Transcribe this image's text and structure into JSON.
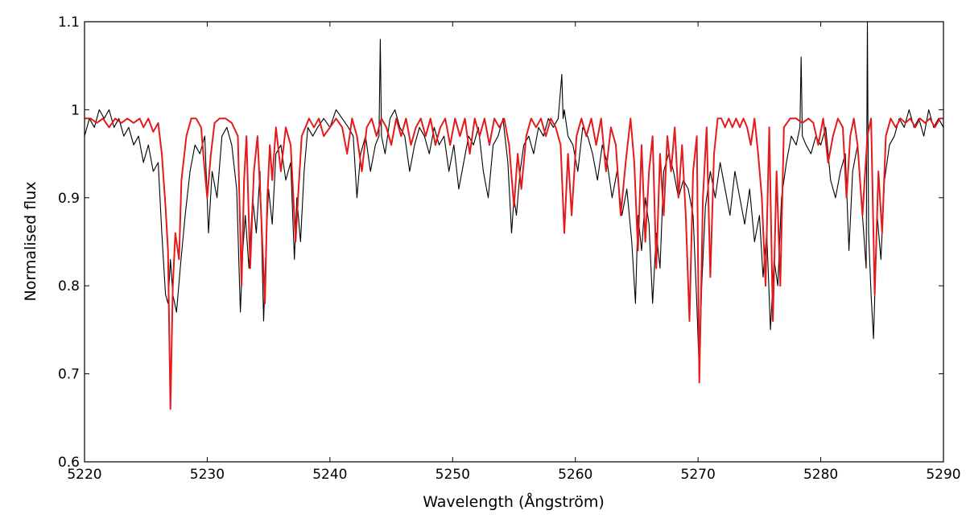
{
  "chart_data": {
    "type": "line",
    "title": "",
    "xlabel": "Wavelength (Ångström)",
    "ylabel": "Normalised flux",
    "xlim": [
      5220,
      5290
    ],
    "ylim": [
      0.6,
      1.1
    ],
    "xticks": [
      5220,
      5230,
      5240,
      5250,
      5260,
      5270,
      5280,
      5290
    ],
    "xtick_labels": [
      "5220",
      "5230",
      "5240",
      "5250",
      "5260",
      "5270",
      "5280",
      "5290"
    ],
    "yticks": [
      0.6,
      0.7,
      0.8,
      0.9,
      1.0,
      1.1
    ],
    "ytick_labels": [
      "0.6",
      "0.7",
      "0.8",
      "0.9",
      "1",
      "1.1"
    ],
    "grid": false,
    "legend": "none",
    "series": [
      {
        "color": "#000000",
        "line_width": 1.1,
        "x": [
          5220.0,
          5220.4,
          5220.8,
          5221.2,
          5221.6,
          5222.0,
          5222.4,
          5222.8,
          5223.2,
          5223.6,
          5224.0,
          5224.4,
          5224.8,
          5225.2,
          5225.6,
          5226.0,
          5226.3,
          5226.6,
          5226.8,
          5227.0,
          5227.2,
          5227.5,
          5227.8,
          5228.2,
          5228.6,
          5229.0,
          5229.4,
          5229.8,
          5230.1,
          5230.4,
          5230.8,
          5231.2,
          5231.6,
          5232.0,
          5232.4,
          5232.7,
          5232.9,
          5233.1,
          5233.4,
          5233.7,
          5234.0,
          5234.3,
          5234.6,
          5234.8,
          5235.0,
          5235.3,
          5235.6,
          5236.0,
          5236.4,
          5236.8,
          5237.1,
          5237.3,
          5237.6,
          5237.9,
          5238.2,
          5238.6,
          5239.0,
          5239.5,
          5240.0,
          5240.5,
          5241.0,
          5241.5,
          5241.9,
          5242.2,
          5242.5,
          5242.9,
          5243.3,
          5243.7,
          5244.0,
          5244.1,
          5244.2,
          5244.5,
          5244.9,
          5245.3,
          5245.7,
          5246.1,
          5246.5,
          5246.9,
          5247.3,
          5247.7,
          5248.1,
          5248.5,
          5248.9,
          5249.3,
          5249.7,
          5250.1,
          5250.5,
          5250.9,
          5251.3,
          5251.7,
          5252.1,
          5252.5,
          5252.9,
          5253.3,
          5253.7,
          5254.1,
          5254.5,
          5254.8,
          5255.0,
          5255.2,
          5255.5,
          5255.8,
          5256.2,
          5256.6,
          5257.0,
          5257.4,
          5257.8,
          5258.2,
          5258.6,
          5258.9,
          5259.0,
          5259.1,
          5259.4,
          5259.8,
          5260.2,
          5260.6,
          5261.0,
          5261.4,
          5261.8,
          5262.2,
          5262.6,
          5263.0,
          5263.4,
          5263.8,
          5264.2,
          5264.6,
          5264.9,
          5265.1,
          5265.4,
          5265.7,
          5266.0,
          5266.3,
          5266.6,
          5266.9,
          5267.2,
          5267.6,
          5268.0,
          5268.4,
          5268.8,
          5269.2,
          5269.6,
          5269.9,
          5270.1,
          5270.3,
          5270.6,
          5271.0,
          5271.4,
          5271.8,
          5272.2,
          5272.6,
          5273.0,
          5273.4,
          5273.8,
          5274.2,
          5274.6,
          5275.0,
          5275.3,
          5275.6,
          5275.9,
          5276.2,
          5276.5,
          5276.8,
          5277.2,
          5277.6,
          5278.0,
          5278.3,
          5278.4,
          5278.5,
          5278.8,
          5279.2,
          5279.6,
          5280.0,
          5280.4,
          5280.8,
          5281.2,
          5281.6,
          5282.0,
          5282.3,
          5282.6,
          5283.0,
          5283.4,
          5283.7,
          5283.8,
          5283.9,
          5284.1,
          5284.3,
          5284.6,
          5284.9,
          5285.2,
          5285.6,
          5286.0,
          5286.4,
          5286.8,
          5287.2,
          5287.6,
          5288.0,
          5288.4,
          5288.8,
          5289.2,
          5289.6,
          5290.0
        ],
        "y": [
          0.97,
          0.99,
          0.98,
          1.0,
          0.99,
          1.0,
          0.98,
          0.99,
          0.97,
          0.98,
          0.96,
          0.97,
          0.94,
          0.96,
          0.93,
          0.94,
          0.86,
          0.79,
          0.78,
          0.83,
          0.79,
          0.77,
          0.82,
          0.88,
          0.93,
          0.96,
          0.95,
          0.97,
          0.86,
          0.93,
          0.9,
          0.97,
          0.98,
          0.96,
          0.91,
          0.77,
          0.84,
          0.88,
          0.82,
          0.9,
          0.86,
          0.93,
          0.76,
          0.85,
          0.91,
          0.87,
          0.95,
          0.96,
          0.92,
          0.94,
          0.83,
          0.9,
          0.85,
          0.93,
          0.98,
          0.97,
          0.98,
          0.99,
          0.98,
          1.0,
          0.99,
          0.98,
          0.97,
          0.9,
          0.95,
          0.97,
          0.93,
          0.96,
          0.97,
          1.08,
          0.97,
          0.95,
          0.99,
          1.0,
          0.98,
          0.97,
          0.93,
          0.96,
          0.98,
          0.97,
          0.95,
          0.98,
          0.96,
          0.97,
          0.93,
          0.96,
          0.91,
          0.94,
          0.97,
          0.96,
          0.98,
          0.93,
          0.9,
          0.96,
          0.97,
          0.99,
          0.94,
          0.86,
          0.9,
          0.88,
          0.93,
          0.96,
          0.97,
          0.95,
          0.98,
          0.97,
          0.99,
          0.98,
          0.99,
          1.04,
          0.99,
          1.0,
          0.97,
          0.96,
          0.93,
          0.98,
          0.97,
          0.95,
          0.92,
          0.96,
          0.94,
          0.9,
          0.93,
          0.88,
          0.91,
          0.85,
          0.78,
          0.88,
          0.84,
          0.9,
          0.87,
          0.78,
          0.86,
          0.82,
          0.93,
          0.95,
          0.93,
          0.9,
          0.92,
          0.91,
          0.88,
          0.78,
          0.7,
          0.8,
          0.89,
          0.93,
          0.9,
          0.94,
          0.91,
          0.88,
          0.93,
          0.9,
          0.87,
          0.91,
          0.85,
          0.88,
          0.81,
          0.86,
          0.75,
          0.83,
          0.8,
          0.9,
          0.94,
          0.97,
          0.96,
          0.98,
          1.06,
          0.97,
          0.96,
          0.95,
          0.97,
          0.96,
          0.98,
          0.92,
          0.9,
          0.93,
          0.95,
          0.84,
          0.93,
          0.96,
          0.88,
          0.82,
          1.1,
          0.86,
          0.79,
          0.74,
          0.88,
          0.83,
          0.92,
          0.96,
          0.97,
          0.99,
          0.98,
          1.0,
          0.98,
          0.99,
          0.97,
          1.0,
          0.98,
          0.99,
          0.98
        ]
      },
      {
        "color": "#e41a1c",
        "line_width": 2.0,
        "x": [
          5220.0,
          5220.5,
          5221.0,
          5221.5,
          5222.0,
          5222.5,
          5223.0,
          5223.5,
          5224.0,
          5224.5,
          5224.8,
          5225.2,
          5225.6,
          5226.0,
          5226.3,
          5226.6,
          5226.8,
          5227.0,
          5227.2,
          5227.4,
          5227.7,
          5227.9,
          5228.3,
          5228.7,
          5229.1,
          5229.5,
          5229.8,
          5230.0,
          5230.3,
          5230.6,
          5231.0,
          5231.5,
          5232.0,
          5232.5,
          5232.8,
          5233.0,
          5233.2,
          5233.5,
          5233.8,
          5234.1,
          5234.4,
          5234.7,
          5234.9,
          5235.1,
          5235.3,
          5235.6,
          5236.0,
          5236.4,
          5236.8,
          5237.2,
          5237.4,
          5237.7,
          5238.0,
          5238.3,
          5238.7,
          5239.1,
          5239.5,
          5240.0,
          5240.5,
          5241.0,
          5241.4,
          5241.8,
          5242.2,
          5242.6,
          5243.0,
          5243.4,
          5243.8,
          5244.2,
          5244.6,
          5245.0,
          5245.4,
          5245.8,
          5246.2,
          5246.6,
          5247.0,
          5247.4,
          5247.8,
          5248.2,
          5248.6,
          5249.0,
          5249.4,
          5249.8,
          5250.2,
          5250.6,
          5251.0,
          5251.4,
          5251.8,
          5252.2,
          5252.6,
          5253.0,
          5253.4,
          5253.8,
          5254.2,
          5254.6,
          5255.0,
          5255.3,
          5255.6,
          5256.0,
          5256.4,
          5256.8,
          5257.2,
          5257.6,
          5258.0,
          5258.4,
          5258.8,
          5259.1,
          5259.4,
          5259.7,
          5260.1,
          5260.5,
          5260.9,
          5261.3,
          5261.7,
          5262.1,
          5262.5,
          5262.9,
          5263.3,
          5263.7,
          5264.1,
          5264.5,
          5264.8,
          5265.1,
          5265.4,
          5265.7,
          5266.0,
          5266.3,
          5266.6,
          5266.9,
          5267.2,
          5267.5,
          5267.8,
          5268.1,
          5268.4,
          5268.7,
          5269.0,
          5269.3,
          5269.6,
          5269.9,
          5270.1,
          5270.4,
          5270.7,
          5271.0,
          5271.3,
          5271.6,
          5271.9,
          5272.2,
          5272.5,
          5272.8,
          5273.1,
          5273.4,
          5273.7,
          5274.0,
          5274.3,
          5274.6,
          5274.9,
          5275.2,
          5275.5,
          5275.8,
          5276.1,
          5276.4,
          5276.7,
          5277.0,
          5277.5,
          5278.0,
          5278.5,
          5279.0,
          5279.4,
          5279.8,
          5280.2,
          5280.6,
          5281.0,
          5281.4,
          5281.8,
          5282.1,
          5282.4,
          5282.7,
          5283.0,
          5283.4,
          5283.8,
          5284.1,
          5284.4,
          5284.7,
          5285.0,
          5285.3,
          5285.7,
          5286.1,
          5286.5,
          5286.9,
          5287.3,
          5287.7,
          5288.1,
          5288.5,
          5288.9,
          5289.3,
          5289.7,
          5290.0
        ],
        "y": [
          0.99,
          0.99,
          0.985,
          0.99,
          0.98,
          0.99,
          0.985,
          0.99,
          0.985,
          0.99,
          0.98,
          0.99,
          0.975,
          0.985,
          0.95,
          0.89,
          0.84,
          0.66,
          0.8,
          0.86,
          0.83,
          0.92,
          0.97,
          0.99,
          0.99,
          0.98,
          0.93,
          0.9,
          0.95,
          0.985,
          0.99,
          0.99,
          0.985,
          0.97,
          0.8,
          0.92,
          0.97,
          0.82,
          0.93,
          0.97,
          0.88,
          0.78,
          0.9,
          0.96,
          0.92,
          0.98,
          0.93,
          0.98,
          0.96,
          0.85,
          0.9,
          0.97,
          0.98,
          0.99,
          0.98,
          0.99,
          0.97,
          0.98,
          0.99,
          0.98,
          0.95,
          0.99,
          0.97,
          0.93,
          0.98,
          0.99,
          0.97,
          0.99,
          0.98,
          0.96,
          0.99,
          0.97,
          0.99,
          0.96,
          0.98,
          0.99,
          0.97,
          0.99,
          0.96,
          0.98,
          0.99,
          0.96,
          0.99,
          0.97,
          0.99,
          0.95,
          0.99,
          0.97,
          0.99,
          0.96,
          0.99,
          0.98,
          0.99,
          0.96,
          0.89,
          0.95,
          0.91,
          0.97,
          0.99,
          0.98,
          0.99,
          0.97,
          0.99,
          0.98,
          0.96,
          0.86,
          0.95,
          0.88,
          0.97,
          0.99,
          0.97,
          0.99,
          0.96,
          0.99,
          0.93,
          0.98,
          0.96,
          0.88,
          0.94,
          0.99,
          0.94,
          0.84,
          0.96,
          0.85,
          0.93,
          0.97,
          0.82,
          0.95,
          0.88,
          0.97,
          0.93,
          0.98,
          0.9,
          0.96,
          0.88,
          0.76,
          0.93,
          0.97,
          0.69,
          0.9,
          0.98,
          0.81,
          0.95,
          0.99,
          0.99,
          0.98,
          0.99,
          0.98,
          0.99,
          0.98,
          0.99,
          0.98,
          0.96,
          0.99,
          0.95,
          0.9,
          0.8,
          0.98,
          0.76,
          0.93,
          0.8,
          0.98,
          0.99,
          0.99,
          0.985,
          0.99,
          0.985,
          0.96,
          0.99,
          0.94,
          0.97,
          0.99,
          0.98,
          0.9,
          0.97,
          0.99,
          0.96,
          0.88,
          0.97,
          0.99,
          0.79,
          0.93,
          0.86,
          0.97,
          0.99,
          0.98,
          0.99,
          0.985,
          0.99,
          0.98,
          0.99,
          0.985,
          0.99,
          0.98,
          0.99,
          0.99
        ]
      }
    ]
  }
}
